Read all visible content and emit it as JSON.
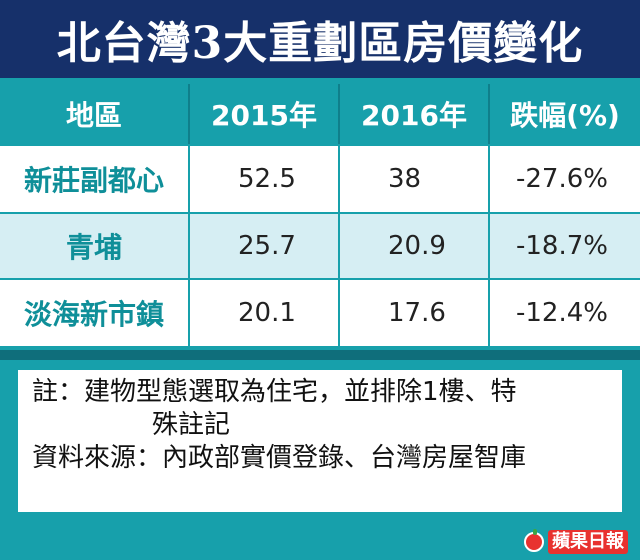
{
  "title": "北台灣3大重劃區房價變化",
  "chart_data": {
    "type": "table",
    "columns": [
      "地區",
      "2015年",
      "2016年",
      "跌幅(%)"
    ],
    "rows": [
      {
        "area": "新莊副都心",
        "y2015": "52.5",
        "y2016": "38",
        "change": "-27.6%"
      },
      {
        "area": "青埔",
        "y2015": "25.7",
        "y2016": "20.9",
        "change": "-18.7%"
      },
      {
        "area": "淡海新市鎮",
        "y2015": "20.1",
        "y2016": "17.6",
        "change": "-12.4%"
      }
    ]
  },
  "notes": {
    "line1": "註：建物型態選取為住宅，並排除1樓、特",
    "line2": "殊註記",
    "line3": "資料來源：內政部實價登錄、台灣房屋智庫"
  },
  "logo": {
    "text": "蘋果日報"
  },
  "colors": {
    "title_bg": "#16306a",
    "teal": "#17a0ab",
    "light_row": "#d6eef3",
    "area_text": "#0f8f99"
  }
}
